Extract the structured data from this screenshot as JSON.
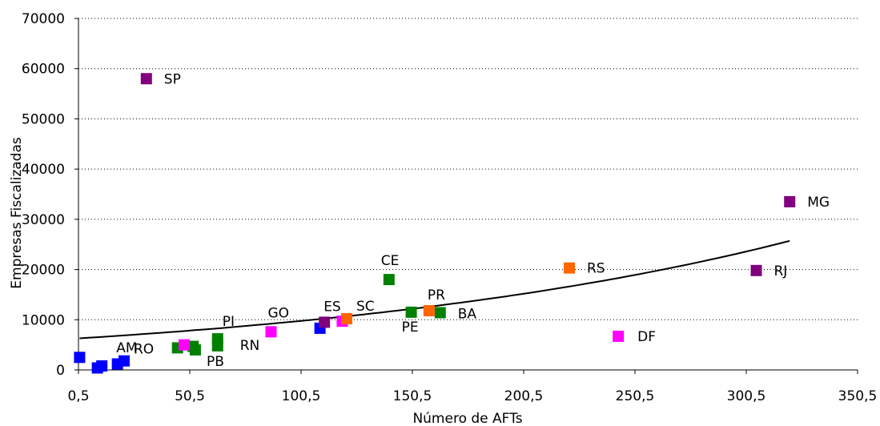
{
  "chart_data": {
    "type": "scatter",
    "title": "",
    "xlabel": "Número de AFTs",
    "ylabel": "Empresas Fiscalizadas",
    "xlim": [
      0.5,
      350.5
    ],
    "ylim": [
      0,
      70000
    ],
    "x_ticks": [
      "0,5",
      "50,5",
      "100,5",
      "150,5",
      "200,5",
      "250,5",
      "300,5",
      "350,5"
    ],
    "y_ticks": [
      "0",
      "10000",
      "20000",
      "30000",
      "40000",
      "50000",
      "60000",
      "70000"
    ],
    "grid": "horizontal dotted",
    "legend": "none",
    "colors": {
      "blue": "#0000ff",
      "green": "#008000",
      "magenta": "#ff00ff",
      "orange": "#ff6600",
      "purple": "#800080"
    },
    "points": [
      {
        "label": "",
        "x": 1,
        "y": 2500,
        "color": "blue"
      },
      {
        "label": "",
        "x": 9,
        "y": 400,
        "color": "blue"
      },
      {
        "label": "AM",
        "x": 11,
        "y": 800,
        "color": "blue"
      },
      {
        "label": "",
        "x": 18,
        "y": 1200,
        "color": "blue"
      },
      {
        "label": "RO",
        "x": 21,
        "y": 1800,
        "color": "blue"
      },
      {
        "label": "",
        "x": 109,
        "y": 8300,
        "color": "blue"
      },
      {
        "label": "",
        "x": 45,
        "y": 4400,
        "color": "green"
      },
      {
        "label": "",
        "x": 52,
        "y": 4700,
        "color": "green"
      },
      {
        "label": "PB",
        "x": 53,
        "y": 4000,
        "color": "green"
      },
      {
        "label": "PI",
        "x": 63,
        "y": 6200,
        "color": "green"
      },
      {
        "label": "RN",
        "x": 63,
        "y": 4800,
        "color": "green"
      },
      {
        "label": "CE",
        "x": 140,
        "y": 18000,
        "color": "green"
      },
      {
        "label": "PE",
        "x": 150,
        "y": 11500,
        "color": "green"
      },
      {
        "label": "BA",
        "x": 163,
        "y": 11400,
        "color": "green"
      },
      {
        "label": "",
        "x": 48,
        "y": 5000,
        "color": "magenta"
      },
      {
        "label": "GO",
        "x": 87,
        "y": 7600,
        "color": "magenta"
      },
      {
        "label": "",
        "x": 119,
        "y": 9700,
        "color": "magenta"
      },
      {
        "label": "DF",
        "x": 243,
        "y": 6700,
        "color": "magenta"
      },
      {
        "label": "SC",
        "x": 121,
        "y": 10200,
        "color": "orange"
      },
      {
        "label": "PR",
        "x": 158,
        "y": 11800,
        "color": "orange"
      },
      {
        "label": "RS",
        "x": 221,
        "y": 20300,
        "color": "orange"
      },
      {
        "label": "SP",
        "x": 31,
        "y": 58000,
        "color": "purple"
      },
      {
        "label": "ES",
        "x": 111,
        "y": 9500,
        "color": "purple"
      },
      {
        "label": "RJ",
        "x": 305,
        "y": 19800,
        "color": "purple"
      },
      {
        "label": "MG",
        "x": 320,
        "y": 33500,
        "color": "purple"
      }
    ],
    "trendline": {
      "type": "exponential",
      "x": [
        1,
        320
      ],
      "y": [
        6300,
        25700
      ]
    }
  }
}
